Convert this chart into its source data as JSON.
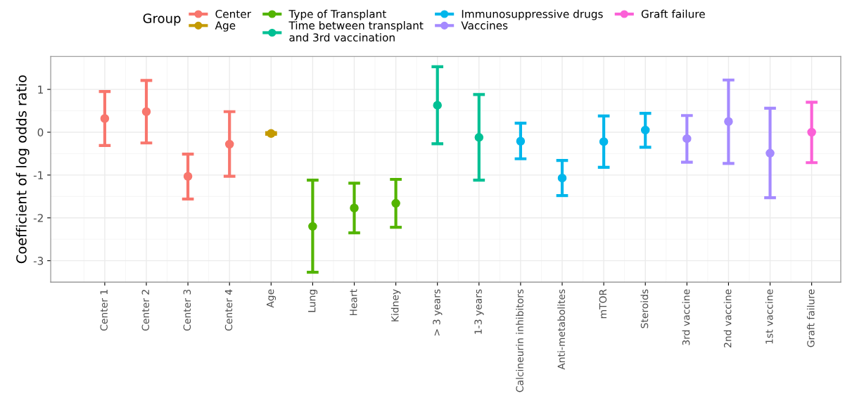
{
  "chart_data": {
    "type": "scatter",
    "ylabel": "Coefficient of log odds ratio",
    "legend_title": "Group",
    "legend": "top",
    "categories": [
      "Center 1",
      "Center 2",
      "Center 3",
      "Center 4",
      "Age",
      "Lung",
      "Heart",
      "Kidney",
      "> 3 years",
      "1-3 years",
      "Calcineurin inhibitors",
      "Anti-metabolites",
      "mTOR",
      "Steroids",
      "3rd vaccine",
      "2nd vaccine",
      "1st vaccine",
      "Graft failure"
    ],
    "ylim": [
      -3.5,
      1.77
    ],
    "yticks": [
      -3,
      -2,
      -1,
      0,
      1
    ],
    "grid": true,
    "marker": "circle",
    "series": [
      {
        "name": "Center",
        "color": "#f8766d",
        "values": [
          0.32,
          0.48,
          -1.03,
          -0.28,
          null,
          null,
          null,
          null,
          null,
          null,
          null,
          null,
          null,
          null,
          null,
          null,
          null,
          null
        ],
        "errors": [
          [
            -0.31,
            0.95
          ],
          [
            -0.25,
            1.21
          ],
          [
            -1.56,
            -0.51
          ],
          [
            -1.03,
            0.48
          ],
          null,
          null,
          null,
          null,
          null,
          null,
          null,
          null,
          null,
          null,
          null,
          null,
          null,
          null
        ]
      },
      {
        "name": "Age",
        "color": "#c49a00",
        "values": [
          null,
          null,
          null,
          null,
          -0.03,
          null,
          null,
          null,
          null,
          null,
          null,
          null,
          null,
          null,
          null,
          null,
          null,
          null
        ],
        "errors": [
          null,
          null,
          null,
          null,
          [
            -0.05,
            -0.01
          ],
          null,
          null,
          null,
          null,
          null,
          null,
          null,
          null,
          null,
          null,
          null,
          null,
          null
        ]
      },
      {
        "name": "Type of Transplant",
        "color": "#53b400",
        "values": [
          null,
          null,
          null,
          null,
          null,
          -2.2,
          -1.77,
          -1.66,
          null,
          null,
          null,
          null,
          null,
          null,
          null,
          null,
          null,
          null
        ],
        "errors": [
          null,
          null,
          null,
          null,
          null,
          [
            -3.27,
            -1.12
          ],
          [
            -2.35,
            -1.19
          ],
          [
            -2.22,
            -1.1
          ],
          null,
          null,
          null,
          null,
          null,
          null,
          null,
          null,
          null,
          null
        ]
      },
      {
        "name": "Time between transplant\nand 3rd vaccination",
        "color": "#00c094",
        "values": [
          null,
          null,
          null,
          null,
          null,
          null,
          null,
          null,
          0.63,
          -0.12,
          null,
          null,
          null,
          null,
          null,
          null,
          null,
          null
        ],
        "errors": [
          null,
          null,
          null,
          null,
          null,
          null,
          null,
          null,
          [
            -0.27,
            1.53
          ],
          [
            -1.12,
            0.88
          ],
          null,
          null,
          null,
          null,
          null,
          null,
          null,
          null
        ]
      },
      {
        "name": "Immunosuppressive drugs",
        "color": "#00b6eb",
        "values": [
          null,
          null,
          null,
          null,
          null,
          null,
          null,
          null,
          null,
          null,
          -0.21,
          -1.07,
          -0.22,
          0.05,
          null,
          null,
          null,
          null
        ],
        "errors": [
          null,
          null,
          null,
          null,
          null,
          null,
          null,
          null,
          null,
          null,
          [
            -0.62,
            0.21
          ],
          [
            -1.48,
            -0.66
          ],
          [
            -0.82,
            0.38
          ],
          [
            -0.35,
            0.44
          ],
          null,
          null,
          null,
          null
        ]
      },
      {
        "name": "Vaccines",
        "color": "#a58aff",
        "values": [
          null,
          null,
          null,
          null,
          null,
          null,
          null,
          null,
          null,
          null,
          null,
          null,
          null,
          null,
          -0.15,
          0.25,
          -0.49,
          null
        ],
        "errors": [
          null,
          null,
          null,
          null,
          null,
          null,
          null,
          null,
          null,
          null,
          null,
          null,
          null,
          null,
          [
            -0.7,
            0.39
          ],
          [
            -0.73,
            1.22
          ],
          [
            -1.53,
            0.56
          ],
          null
        ]
      },
      {
        "name": "Graft failure",
        "color": "#fb61d7",
        "values": [
          null,
          null,
          null,
          null,
          null,
          null,
          null,
          null,
          null,
          null,
          null,
          null,
          null,
          null,
          null,
          null,
          null,
          0.0
        ],
        "errors": [
          null,
          null,
          null,
          null,
          null,
          null,
          null,
          null,
          null,
          null,
          null,
          null,
          null,
          null,
          null,
          null,
          null,
          [
            -0.71,
            0.7
          ]
        ]
      }
    ]
  }
}
